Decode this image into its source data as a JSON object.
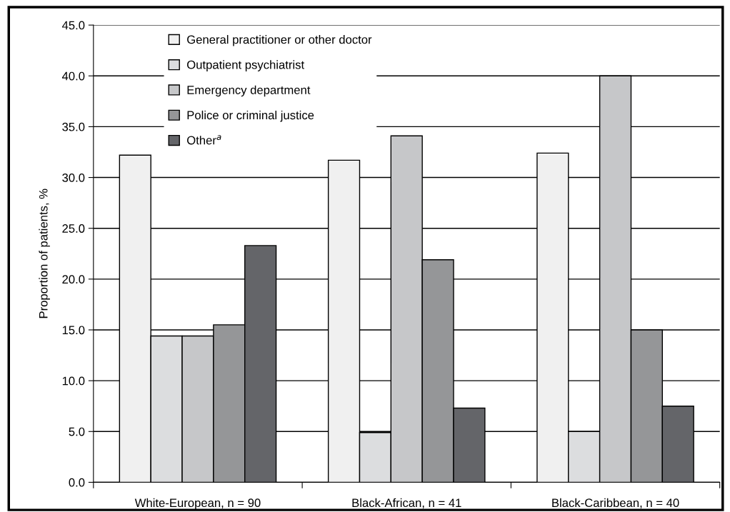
{
  "chart_data": {
    "type": "bar",
    "categories": [
      "White-European, n = 90",
      "Black-African, n = 41",
      "Black-Caribbean, n = 40"
    ],
    "ylabel": "Proportion of patients, %",
    "series": [
      {
        "name": "General practitioner or other doctor",
        "color": "#f0f0f0",
        "values": [
          32.2,
          31.7,
          32.4
        ]
      },
      {
        "name": "Outpatient psychiatrist",
        "color": "#dcdddf",
        "values": [
          14.4,
          4.9,
          5.0
        ]
      },
      {
        "name": "Emergency department",
        "color": "#c6c7c9",
        "values": [
          14.4,
          34.1,
          40.0
        ]
      },
      {
        "name": "Police or criminal justice",
        "color": "#959698",
        "values": [
          15.5,
          21.9,
          15.0
        ]
      },
      {
        "name": "Other$^{a}$",
        "color": "#646569",
        "values": [
          23.3,
          7.3,
          7.5
        ]
      }
    ],
    "ylim": [
      0,
      45
    ],
    "yticks": [
      {
        "value": 0,
        "label": "0.0"
      },
      {
        "value": 5,
        "label": "5.0"
      },
      {
        "value": 10,
        "label": "10.0"
      },
      {
        "value": 15,
        "label": "15.0"
      },
      {
        "value": 20,
        "label": "20.0"
      },
      {
        "value": 25,
        "label": "25.0"
      },
      {
        "value": 30,
        "label": "30.0"
      },
      {
        "value": 35,
        "label": "35.0"
      },
      {
        "value": 40,
        "label": "40.0"
      },
      {
        "value": 45,
        "label": "45.0"
      }
    ],
    "grid": "y",
    "legend": "top left"
  }
}
